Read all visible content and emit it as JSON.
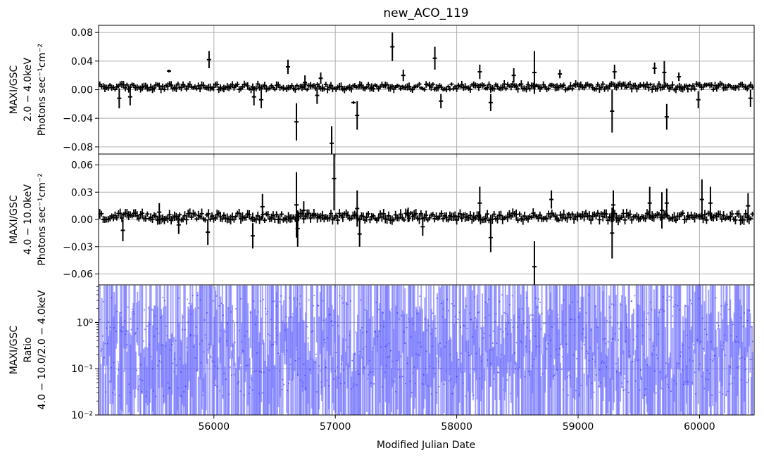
{
  "chart_data": {
    "type": "scatter",
    "title": "new_ACO_119",
    "shared_x": {
      "label": "Modified Julian Date",
      "lim": [
        55050,
        60450
      ],
      "ticks": [
        56000,
        57000,
        58000,
        59000,
        60000
      ],
      "tick_labels": [
        "56000",
        "57000",
        "58000",
        "59000",
        "60000"
      ]
    },
    "panels": [
      {
        "id": "band-low",
        "ylabel_lines": [
          "MAXI/GSC",
          "2.0 − 4.0keV",
          "Photons sec⁻¹cm⁻²"
        ],
        "ylim": [
          -0.09,
          0.09
        ],
        "yticks": [
          -0.08,
          -0.04,
          0.0,
          0.04,
          0.08
        ],
        "ytick_labels": [
          "−0.08",
          "−0.04",
          "0.00",
          "0.04",
          "0.08"
        ],
        "grid": true,
        "marker_color": "#000000",
        "errorbar_color": "#000000",
        "sampling": {
          "start": 55060,
          "end": 60440,
          "step": 14
        },
        "baseline": {
          "center": 0.004,
          "spread": 0.004,
          "err": 0.004
        },
        "outliers": [
          [
            55220,
            -0.012,
            0.014
          ],
          [
            55310,
            -0.01,
            0.012
          ],
          [
            55630,
            0.026,
            0.002
          ],
          [
            55960,
            0.042,
            0.012
          ],
          [
            56330,
            -0.01,
            0.012
          ],
          [
            56390,
            -0.014,
            0.012
          ],
          [
            56610,
            0.032,
            0.01
          ],
          [
            56680,
            -0.045,
            0.026
          ],
          [
            56750,
            0.01,
            0.01
          ],
          [
            56850,
            -0.008,
            0.012
          ],
          [
            56880,
            0.016,
            0.008
          ],
          [
            56970,
            -0.075,
            0.024
          ],
          [
            57150,
            -0.018,
            0.002
          ],
          [
            57180,
            -0.036,
            0.02
          ],
          [
            57470,
            0.06,
            0.02
          ],
          [
            57560,
            0.02,
            0.008
          ],
          [
            57820,
            0.044,
            0.016
          ],
          [
            57870,
            -0.016,
            0.01
          ],
          [
            58190,
            0.025,
            0.01
          ],
          [
            58280,
            -0.018,
            0.012
          ],
          [
            58470,
            0.02,
            0.01
          ],
          [
            58640,
            0.024,
            0.03
          ],
          [
            58850,
            0.022,
            0.006
          ],
          [
            59280,
            -0.03,
            0.03
          ],
          [
            59300,
            0.025,
            0.01
          ],
          [
            59630,
            0.03,
            0.008
          ],
          [
            59710,
            0.024,
            0.016
          ],
          [
            59730,
            -0.038,
            0.018
          ],
          [
            59830,
            0.018,
            0.006
          ],
          [
            59990,
            -0.014,
            0.012
          ],
          [
            60420,
            -0.012,
            0.012
          ]
        ]
      },
      {
        "id": "band-high",
        "ylabel_lines": [
          "MAXI/GSC",
          "4.0 − 10.0keV",
          "Photons sec⁻¹cm⁻²"
        ],
        "ylim": [
          -0.072,
          0.072
        ],
        "yticks": [
          -0.06,
          -0.03,
          0.0,
          0.03,
          0.06
        ],
        "ytick_labels": [
          "−0.06",
          "−0.03",
          "0.00",
          "0.03",
          "0.06"
        ],
        "grid": true,
        "marker_color": "#000000",
        "errorbar_color": "#000000",
        "sampling": {
          "start": 55060,
          "end": 60440,
          "step": 14
        },
        "baseline": {
          "center": 0.003,
          "spread": 0.004,
          "err": 0.004
        },
        "outliers": [
          [
            55250,
            -0.012,
            0.012
          ],
          [
            55550,
            0.008,
            0.01
          ],
          [
            55710,
            -0.006,
            0.01
          ],
          [
            55950,
            -0.014,
            0.014
          ],
          [
            56320,
            -0.018,
            0.014
          ],
          [
            56400,
            0.014,
            0.014
          ],
          [
            56680,
            0.016,
            0.036
          ],
          [
            56690,
            -0.01,
            0.02
          ],
          [
            56740,
            0.01,
            0.01
          ],
          [
            56990,
            0.045,
            0.035
          ],
          [
            57180,
            0.012,
            0.02
          ],
          [
            57200,
            -0.016,
            0.014
          ],
          [
            57600,
            0.005,
            0.008
          ],
          [
            57720,
            -0.008,
            0.01
          ],
          [
            58190,
            0.018,
            0.018
          ],
          [
            58280,
            -0.02,
            0.016
          ],
          [
            58640,
            -0.052,
            0.028
          ],
          [
            58780,
            0.022,
            0.01
          ],
          [
            59280,
            -0.015,
            0.028
          ],
          [
            59290,
            0.016,
            0.016
          ],
          [
            59590,
            0.018,
            0.018
          ],
          [
            59690,
            0.01,
            0.02
          ],
          [
            59730,
            0.018,
            0.016
          ],
          [
            60020,
            0.022,
            0.022
          ],
          [
            60090,
            0.018,
            0.018
          ],
          [
            60400,
            0.015,
            0.014
          ]
        ]
      },
      {
        "id": "ratio",
        "ylabel_lines": [
          "MAXI/GSC",
          "Ratio",
          "4.0 − 10.0/2.0 − 4.0keV"
        ],
        "ylim": [
          0.01,
          6.5
        ],
        "yscale": "log",
        "yticks": [
          0.01,
          0.1,
          1.0
        ],
        "ytick_labels": [
          "10⁻²",
          "10⁻¹",
          "10⁰"
        ],
        "grid": true,
        "marker_color": "#0000ff",
        "errorbar_color": "#6666ff",
        "sampling": {
          "start": 55060,
          "end": 60440,
          "step": 14
        },
        "ratio_range_log10": [
          -2.0,
          0.8
        ],
        "marker_range_log10": [
          -1.6,
          0.6
        ]
      }
    ]
  }
}
